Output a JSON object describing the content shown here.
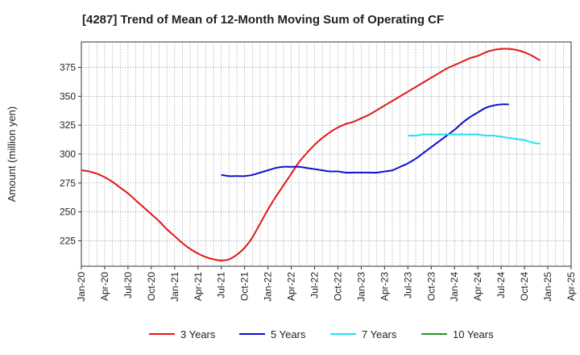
{
  "chart_data": {
    "type": "line",
    "title": "[4287]  Trend of Mean of 12-Month Moving Sum of Operating CF",
    "xlabel": "",
    "ylabel": "Amount (million yen)",
    "ylim": [
      203,
      397
    ],
    "yticks": [
      225,
      250,
      275,
      300,
      325,
      350,
      375
    ],
    "x_ticks": [
      "Jan-20",
      "Apr-20",
      "Jul-20",
      "Oct-20",
      "Jan-21",
      "Apr-21",
      "Jul-21",
      "Oct-21",
      "Jan-22",
      "Apr-22",
      "Jul-22",
      "Oct-22",
      "Jan-23",
      "Apr-23",
      "Jul-23",
      "Oct-23",
      "Jan-24",
      "Apr-24",
      "Jul-24",
      "Oct-24",
      "Jan-25",
      "Apr-25"
    ],
    "grid": true,
    "legend_position": "bottom",
    "series": [
      {
        "name": "3 Years",
        "color": "#e01818",
        "start_index": 0,
        "values": [
          286,
          285,
          283,
          280,
          276,
          271,
          266,
          260,
          254,
          248,
          242,
          235,
          229,
          223,
          218,
          214,
          211,
          209,
          208,
          209,
          213,
          219,
          228,
          240,
          252,
          263,
          273,
          283,
          293,
          301,
          308,
          314,
          319,
          323,
          326,
          328,
          331,
          334,
          338,
          342,
          346,
          350,
          354,
          358,
          362,
          366,
          370,
          374,
          377,
          380,
          383,
          385,
          388,
          390,
          391,
          391,
          390,
          388,
          385,
          381
        ]
      },
      {
        "name": "5 Years",
        "color": "#1010cc",
        "start_index": 18,
        "values": [
          282,
          281,
          281,
          281,
          282,
          284,
          286,
          288,
          289,
          289,
          289,
          288,
          287,
          286,
          285,
          285,
          284,
          284,
          284,
          284,
          284,
          285,
          286,
          289,
          292,
          296,
          301,
          306,
          311,
          316,
          321,
          327,
          332,
          336,
          340,
          342,
          343,
          343
        ]
      },
      {
        "name": "7 Years",
        "color": "#22e2ee",
        "start_index": 42,
        "values": [
          316,
          316,
          317,
          317,
          317,
          317,
          317,
          317,
          317,
          317,
          316,
          316,
          315,
          314,
          313,
          312,
          310,
          309
        ]
      },
      {
        "name": "10 Years",
        "color": "#229922",
        "start_index": 0,
        "values": []
      }
    ]
  }
}
